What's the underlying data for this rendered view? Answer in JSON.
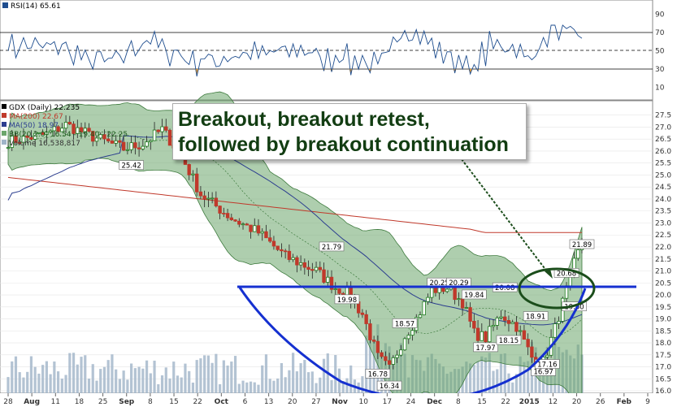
{
  "rsi_panel": {
    "label": "RSI(14) 65.61",
    "ticks": [
      "90",
      "70",
      "50",
      "30",
      "10"
    ]
  },
  "legend": {
    "symbol": "GDX (Daily) 22.235",
    "ma200": "MA(200) 22.67",
    "ma50": "MA(50) 18.97",
    "bb": "BB(20,2.0) 16.54 - 19.40 - 22.25",
    "volume": "Volume 16,538,817"
  },
  "annotation": {
    "line1": "Breakout, breakout retest,",
    "line2": "followed by breakout continuation"
  },
  "colors": {
    "up": "#1d7a1d",
    "down": "#c0392b",
    "band": "#6ca66c",
    "ma200": "#c0392b",
    "ma50": "#2c3e8f",
    "neckline": "#1530d0",
    "rsi_line": "#1f4e8f",
    "rsi_oversold": "#f0a030",
    "volume": "#a0b4c8"
  },
  "chart_data": {
    "type": "candlestick",
    "price_axis": {
      "min": 15.9,
      "max": 28.1,
      "ticks": [
        "27.5",
        "27.0",
        "26.5",
        "26.0",
        "25.5",
        "25.0",
        "24.5",
        "24.0",
        "23.5",
        "23.0",
        "22.5",
        "22.0",
        "21.5",
        "21.0",
        "20.5",
        "20.0",
        "19.5",
        "19.0",
        "18.5",
        "18.0",
        "17.5",
        "17.0",
        "16.5",
        "16.0"
      ]
    },
    "x_ticks": [
      "28",
      "Aug",
      "11",
      "18",
      "25",
      "Sep",
      "8",
      "15",
      "22",
      "Oct",
      "6",
      "13",
      "20",
      "27",
      "Nov",
      "10",
      "17",
      "24",
      "Dec",
      "8",
      "15",
      "22",
      "2015",
      "12",
      "20",
      "26",
      "Feb",
      "9"
    ],
    "bars": 150,
    "price_labels": [
      "25.42",
      "21.79",
      "19.98",
      "16.78",
      "16.34",
      "18.57",
      "20.25",
      "20.29",
      "19.84",
      "17.97",
      "20.08",
      "18.15",
      "18.91",
      "16.97",
      "17.16",
      "20.68",
      "19.60",
      "21.89"
    ],
    "neckline": 20.3,
    "cup_bottom": 16.0
  }
}
